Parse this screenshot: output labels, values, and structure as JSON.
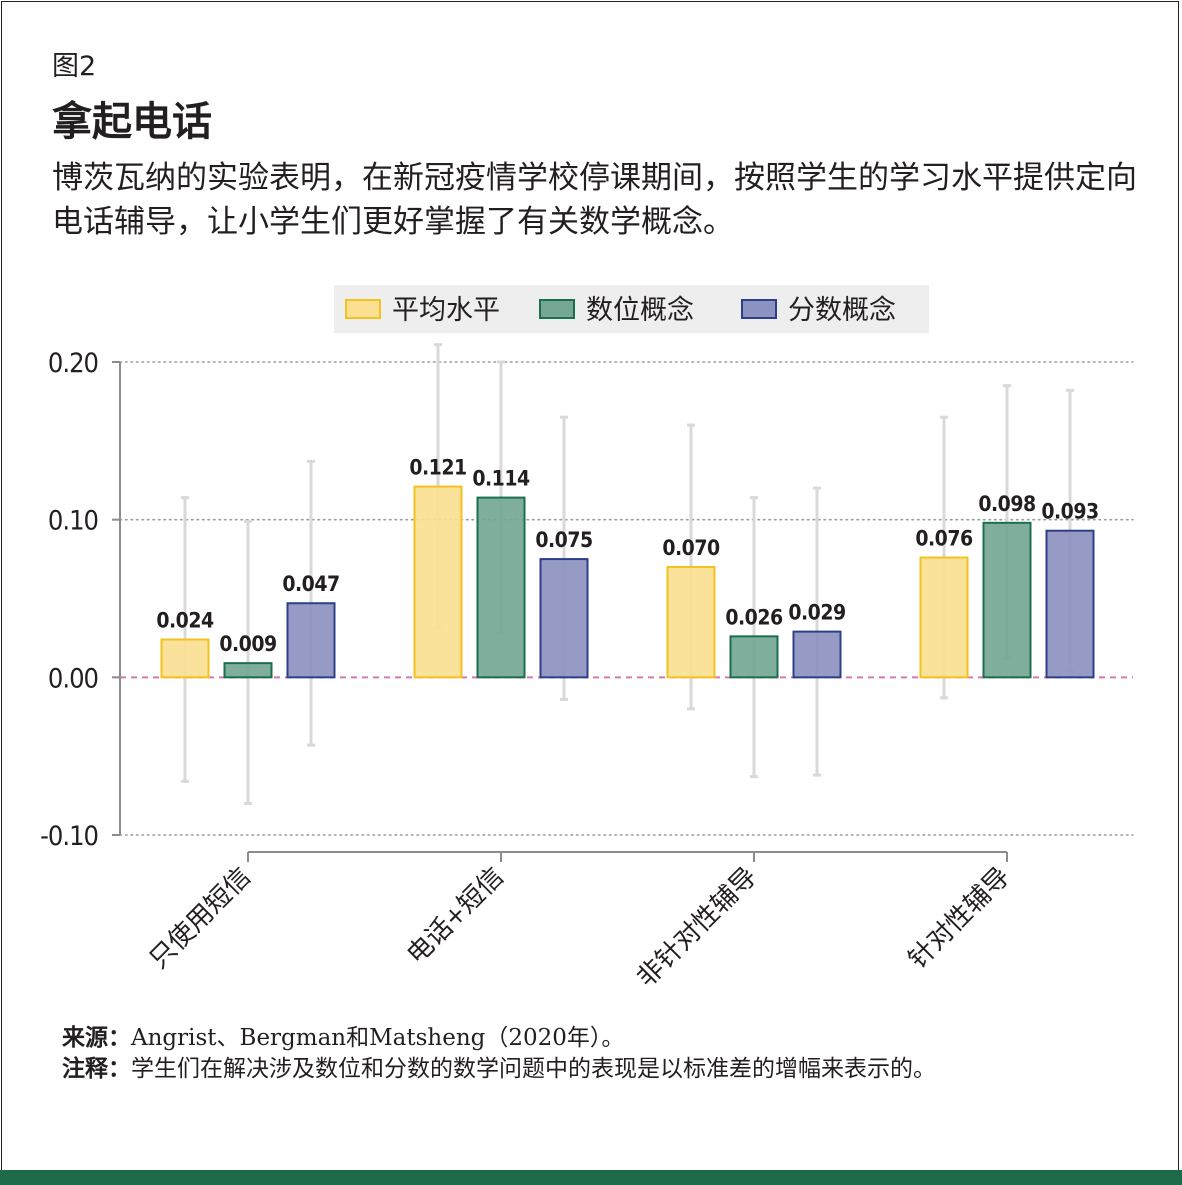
{
  "figure": {
    "label": "图2",
    "title": "拿起电话",
    "subtitle": "博茨瓦纳的实验表明，在新冠疫情学校停课期间，按照学生的学习水平提供定向电话辅导，让小学生们更好掌握了有关数学概念。"
  },
  "footer": {
    "source_lead": "来源：",
    "source_text": "Angrist、Bergman和Matsheng（2020年）。",
    "note_lead": "注释：",
    "note_text": "学生们在解决涉及数位和分数的数学问题中的表现是以标准差的增幅来表示的。"
  },
  "colors": {
    "yellow_fill": "#fbdf92",
    "yellow_edge": "#f2c31e",
    "green_fill": "#74a892",
    "green_edge": "#1d6e4e",
    "blue_fill": "#8c93c0",
    "blue_edge": "#2e3f8a",
    "zero_line": "#d678b1",
    "error_bar": "#d9d9d9",
    "grid": "#9b9b9b",
    "axis": "#8c8c8c",
    "legend_bg": "#eeeeee",
    "accent_bar": "#1e6b4a"
  },
  "chart_data": {
    "type": "bar",
    "categories": [
      "只使用短信",
      "电话+短信",
      "非针对性辅导",
      "针对性辅导"
    ],
    "series": [
      {
        "name": "平均水平",
        "values": [
          0.024,
          0.121,
          0.07,
          0.076
        ],
        "labels": [
          "0.024",
          "0.121",
          "0.070",
          "0.076"
        ],
        "ci_low": [
          -0.066,
          0.031,
          -0.02,
          -0.013
        ],
        "ci_high": [
          0.114,
          0.211,
          0.16,
          0.165
        ]
      },
      {
        "name": "数位概念",
        "values": [
          0.009,
          0.114,
          0.026,
          0.098
        ],
        "labels": [
          "0.009",
          "0.114",
          "0.026",
          "0.098"
        ],
        "ci_low": [
          -0.08,
          0.028,
          -0.063,
          0.012
        ],
        "ci_high": [
          0.099,
          0.2,
          0.114,
          0.185
        ]
      },
      {
        "name": "分数概念",
        "values": [
          0.047,
          0.075,
          0.029,
          0.093
        ],
        "labels": [
          "0.047",
          "0.075",
          "0.029",
          "0.093"
        ],
        "ci_low": [
          -0.043,
          -0.014,
          -0.062,
          0.004
        ],
        "ci_high": [
          0.137,
          0.165,
          0.12,
          0.182
        ]
      }
    ],
    "yticks": [
      0.2,
      0.1,
      0.0,
      -0.1
    ],
    "ytick_labels": [
      "0.20",
      "0.10",
      "0.00",
      "-0.10"
    ],
    "ylim": [
      -0.1,
      0.2
    ],
    "grid": "dotted horizontal",
    "legend_position": "top-center"
  }
}
